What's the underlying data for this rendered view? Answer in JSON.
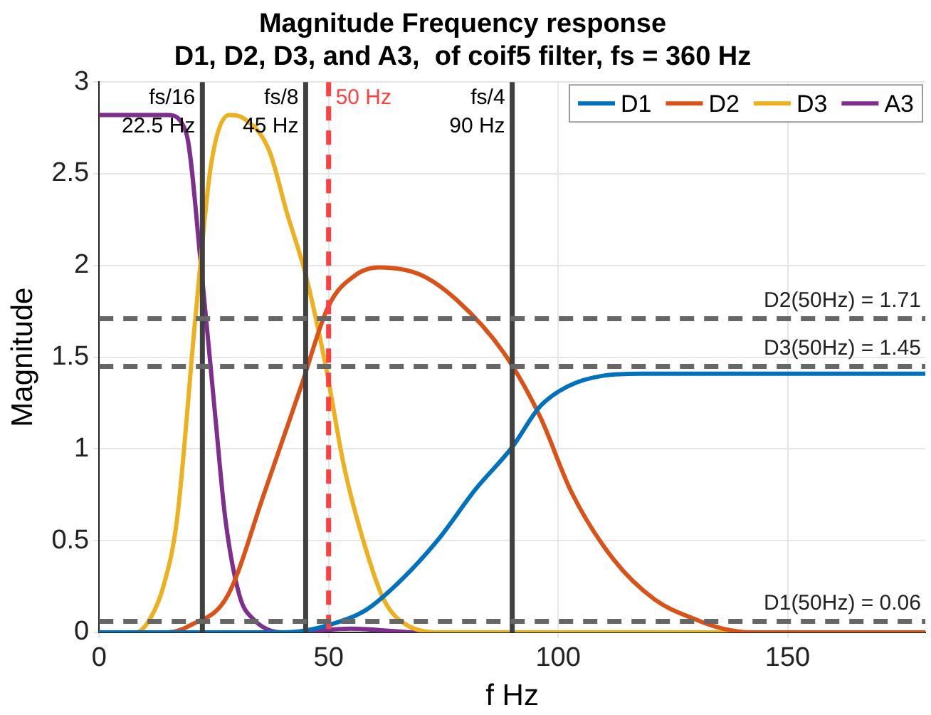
{
  "chart_data": {
    "type": "line",
    "title": "Magnitude Frequency response\nD1, D2, D3, and A3,  of coif5 filter, fs = 360 Hz",
    "xlabel": "f Hz",
    "ylabel": "Magnitude",
    "xlim": [
      0,
      180
    ],
    "xticks": [
      0,
      50,
      100,
      150
    ],
    "ylim": [
      0,
      3
    ],
    "yticks": [
      0,
      0.5,
      1,
      1.5,
      2,
      2.5,
      3
    ],
    "grid": true,
    "legend": "top right",
    "marker": "none",
    "line_style": "solid",
    "series": [
      {
        "name": "D1",
        "color": "#0072bd",
        "x": [
          0,
          40,
          45,
          50,
          58,
          66,
          74,
          82,
          90,
          96,
          102,
          110,
          118,
          140,
          180
        ],
        "values": [
          0,
          0,
          0.01,
          0.04,
          0.12,
          0.29,
          0.51,
          0.78,
          1.01,
          1.23,
          1.34,
          1.4,
          1.41,
          1.41,
          1.41
        ]
      },
      {
        "name": "D2",
        "color": "#d95319",
        "x": [
          0,
          15,
          20,
          28,
          36,
          44,
          50,
          56,
          61,
          70,
          78,
          88,
          96,
          103,
          112,
          121,
          130,
          136,
          142,
          180
        ],
        "values": [
          0,
          0,
          0.04,
          0.2,
          0.76,
          1.34,
          1.78,
          1.95,
          1.99,
          1.95,
          1.81,
          1.53,
          1.18,
          0.76,
          0.4,
          0.18,
          0.07,
          0.02,
          0,
          0
        ]
      },
      {
        "name": "D3",
        "color": "#edb120",
        "x": [
          0,
          8,
          11,
          14,
          17,
          21,
          24.4,
          28.4,
          31.6,
          37,
          41,
          45,
          49.4,
          53.4,
          57.8,
          62,
          67,
          75,
          180
        ],
        "values": [
          0,
          0,
          0.07,
          0.25,
          0.62,
          1.72,
          2.55,
          2.82,
          2.8,
          2.63,
          2.28,
          1.95,
          1.45,
          0.9,
          0.48,
          0.18,
          0.04,
          0,
          0
        ]
      },
      {
        "name": "A3",
        "color": "#7e2f8e",
        "x": [
          0,
          15,
          19,
          22.2,
          25.3,
          27.5,
          30.6,
          33.7,
          40,
          55,
          70,
          180
        ],
        "values": [
          2.82,
          2.82,
          2.72,
          2,
          1.18,
          0.62,
          0.2,
          0.07,
          0,
          0.02,
          0,
          0
        ]
      }
    ],
    "ref_lines": [
      {
        "axis": "x",
        "value": 22.5,
        "label": "fs/16\n22.5 Hz",
        "color": "#404040",
        "line_style": "solid"
      },
      {
        "axis": "x",
        "value": 45,
        "label": "fs/8\n45 Hz",
        "color": "#404040",
        "line_style": "solid"
      },
      {
        "axis": "x",
        "value": 50,
        "label": "50 Hz",
        "color": "#ff4040",
        "line_style": "dashed"
      },
      {
        "axis": "x",
        "value": 90,
        "label": "fs/4\n90 Hz",
        "color": "#404040",
        "line_style": "solid"
      },
      {
        "axis": "y",
        "value": 1.71,
        "label": "D2(50Hz) = 1.71",
        "color": "#666666",
        "line_style": "dashed"
      },
      {
        "axis": "y",
        "value": 1.45,
        "label": "D3(50Hz) = 1.45",
        "color": "#666666",
        "line_style": "dashed"
      },
      {
        "axis": "y",
        "value": 0.06,
        "label": "D1(50Hz) = 0.06",
        "color": "#666666",
        "line_style": "dashed"
      }
    ]
  }
}
